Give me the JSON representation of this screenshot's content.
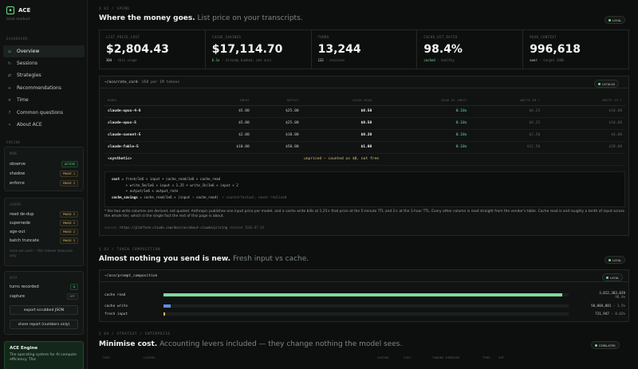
{
  "app": {
    "name": "ACE",
    "subtitle": "local readout",
    "icon": "square-icon"
  },
  "nav": {
    "title": "DASHBOARD",
    "items": [
      {
        "label": "Overview",
        "icon": "square-icon",
        "glyph": "▫"
      },
      {
        "label": "Sessions",
        "icon": "refresh-icon",
        "glyph": "↻"
      },
      {
        "label": "Strategies",
        "icon": "sync-icon",
        "glyph": "⇄"
      },
      {
        "label": "Recommendations",
        "icon": "plus-icon",
        "glyph": "+"
      },
      {
        "label": "Time",
        "icon": "close-icon",
        "glyph": "×"
      },
      {
        "label": "Common questions",
        "icon": "question-icon",
        "glyph": "?"
      },
      {
        "label": "About ACE",
        "icon": "dot-icon",
        "glyph": "•"
      }
    ]
  },
  "engine_section": {
    "title": "ENGINE",
    "mode_title": "MODE",
    "modes": [
      {
        "label": "observe",
        "status": "ACTIVE"
      },
      {
        "label": "shadow",
        "status": "PHASE 1"
      },
      {
        "label": "enforce",
        "status": "PHASE 2"
      }
    ],
    "levers_title": "LEVERS",
    "levers": [
      {
        "label": "read de-dup",
        "status": "PHASE 2"
      },
      {
        "label": "supersede",
        "status": "PHASE 2"
      },
      {
        "label": "age-out",
        "status": "PHASE 2"
      },
      {
        "label": "batch truncate",
        "status": "PHASE 2"
      }
    ],
    "levers_note": "none are used — this release measures only."
  },
  "data_section": {
    "title": "DATA",
    "turns_label": "turns recorded",
    "turns_value": "0",
    "capture_label": "capture",
    "capture_value": "OFF",
    "export_label": "export scrubbed JSON",
    "share_label": "share report (numbers only)"
  },
  "engine_card": {
    "title": "ACE Engine",
    "desc": "The operating system for AI compute efficiency. This"
  },
  "spend": {
    "section": "§ 02 / SPEND",
    "heading_bold": "Where the money goes.",
    "heading_sub": "List price on your transcripts.",
    "badge": "LOCAL",
    "stats": [
      {
        "label": "LIST_PRICE_COST",
        "value": "$2,804.43",
        "cap_hl": "30d",
        "cap": " · this scope"
      },
      {
        "label": "CACHE_SAVINGS",
        "value": "$17,114.70",
        "cap_hl": "6.1x",
        "cap": " · already banked, not ours"
      },
      {
        "label": "TURNS",
        "value": "13,244",
        "cap_hl": "132",
        "cap": " · sessions"
      },
      {
        "label": "CACHE_HIT_RATIO",
        "value": "98.4%",
        "cap_hl": "cached",
        "cap": " · healthy"
      },
      {
        "label": "PEAK_CONTEXT",
        "value": "996,618",
        "cap_hl": "over",
        "cap": " · target 200k"
      }
    ]
  },
  "rate_card": {
    "path": "~/ace/rate_card",
    "unit": " · USD per 1M tokens",
    "badge": "CATALOG",
    "headers": [
      "MODEL",
      "INPUT",
      "OUTPUT",
      "CACHE READ",
      "READ VS INPUT",
      "WRITE 5M *",
      "WRITE 1H *"
    ],
    "rows": [
      {
        "model": "claude-opus-4-8",
        "input": "$5.00",
        "output": "$25.00",
        "cache_read": "$0.50",
        "ratio": "0.10x",
        "w5m": "$6.25",
        "w1h": "$10.00"
      },
      {
        "model": "claude-opus-5",
        "input": "$5.00",
        "output": "$25.00",
        "cache_read": "$0.50",
        "ratio": "0.10x",
        "w5m": "$6.25",
        "w1h": "$10.00"
      },
      {
        "model": "claude-sonnet-5",
        "input": "$2.00",
        "output": "$10.00",
        "cache_read": "$0.20",
        "ratio": "0.10x",
        "w5m": "$2.50",
        "w1h": "$4.00"
      },
      {
        "model": "claude-fable-5",
        "input": "$10.00",
        "output": "$50.00",
        "cache_read": "$1.00",
        "ratio": "0.10x",
        "w5m": "$12.50",
        "w1h": "$20.00"
      }
    ],
    "synthetic": {
      "model": "<synthetic>",
      "note": "unpriced — counted as $0, not free"
    },
    "formula": {
      "l1_k": "cost",
      "l1": " = fresh/1e6 × input + cache_read/1e6 × cache_read",
      "l2": "       + write_5m/1e6 × input × 1.25 + write_1h/1e6 × input × 2",
      "l3": "       + output/1e6 × output_rate",
      "l4_k": "cache_savings",
      "l4": " = cache_read/1e6 × (input − cache_read)",
      "l4_c": "  ← counterfactual, never realized"
    },
    "note": "* the two write columns are derived, not quoted. Anthropic publishes one input price per model, and a cache write bills at 1.25× that price at the 5-minute TTL and 2× at the 1-hour TTL. Every other column is read straight from the vendor's table. Cache read is and roughly a tenth of input across the whole tier, which is the single fact the rest of this page is about.",
    "source_label": "source:",
    "source_url": "https://platform.claude.com/docs/en/about-claude/pricing",
    "source_checked": "  checked 2026-07-26"
  },
  "token": {
    "section": "§ 03 / TOKEN COMPOSITION",
    "heading_bold": "Almost nothing you send is new.",
    "heading_sub": "Fresh input vs cache.",
    "badge": "LOCAL",
    "path": "~/ace/prompt_composition",
    "card_badge": "LOCAL",
    "rows": [
      {
        "label": "cache read",
        "value": "3,012,303,039",
        "pct": "98.4%",
        "share": 0.984,
        "color": "#7fd99a"
      },
      {
        "label": "cache write",
        "value": "50,004,081",
        "pct": "1.5%",
        "share": 0.015,
        "color": "#5b8fe0"
      },
      {
        "label": "fresh input",
        "value": "731,947",
        "pct": "0.02%",
        "share": 0.0002,
        "color": "#e0b45b"
      }
    ]
  },
  "strategy": {
    "section": "§ 04 / STRATEGY / ENTERPRISE",
    "heading_bold": "Minimise cost.",
    "heading_sub": "Accounting levers included — they change nothing the model sees.",
    "badge": "SIMULATED",
    "headers": [
      "TIER",
      "LEVERS",
      "SAVING",
      "COST",
      "TOKENS REMOVED",
      "TPHR",
      "SHT"
    ]
  }
}
